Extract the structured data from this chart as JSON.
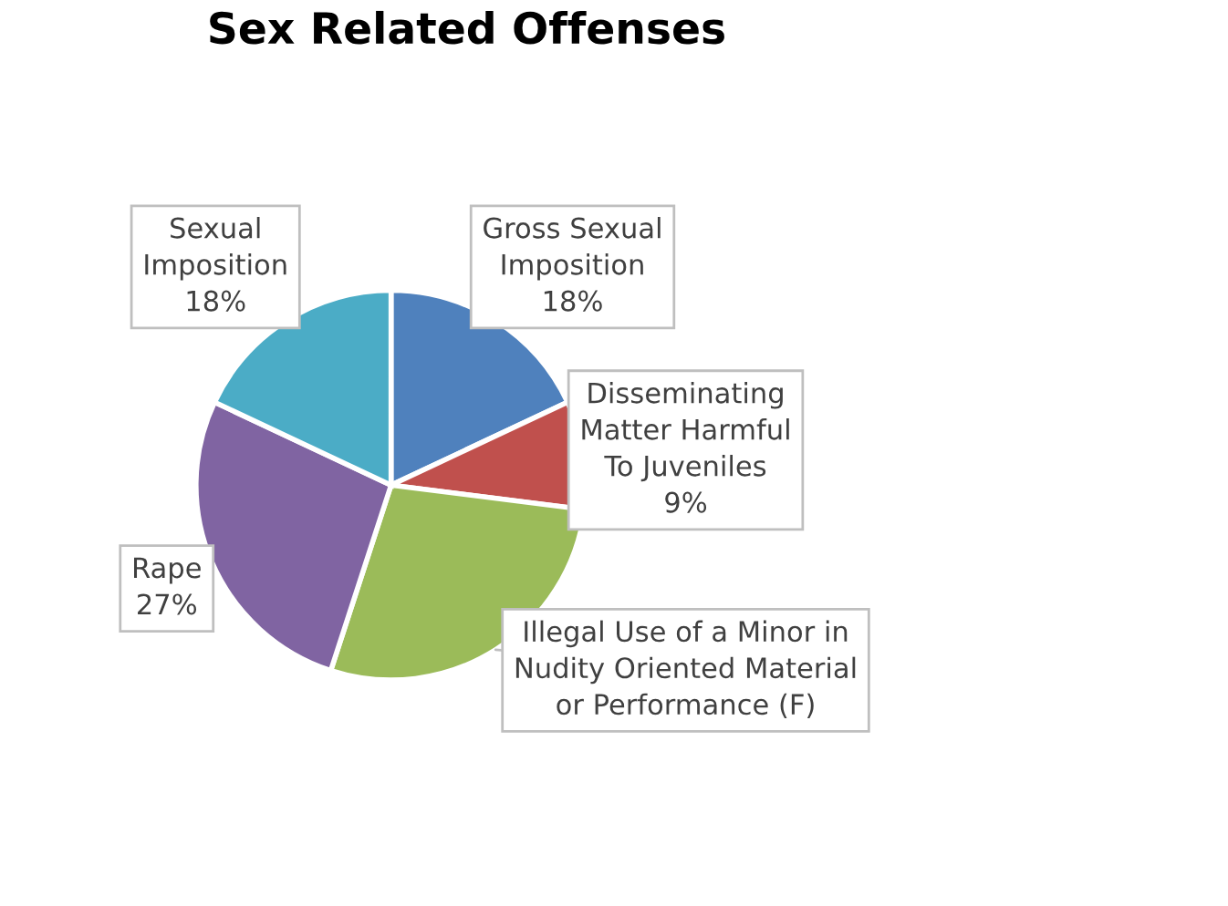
{
  "chart_data": {
    "type": "pie",
    "title": "Sex Related Offenses",
    "categories": [
      "Gross Sexual\nImposition",
      "Disseminating\nMatter Harmful\nTo Juveniles",
      "Illegal Use of a Minor in\nNudity Oriented Material\nor Performance (F)",
      "Rape",
      "Sexual\nImposition"
    ],
    "values": [
      18,
      9,
      28,
      27,
      18
    ],
    "value_labels": [
      "18%",
      "9%",
      null,
      "27%",
      "18%"
    ],
    "colors": [
      "#4f81bd",
      "#c0504d",
      "#9bbb59",
      "#8064a2",
      "#4bacc6"
    ],
    "legend": false
  }
}
